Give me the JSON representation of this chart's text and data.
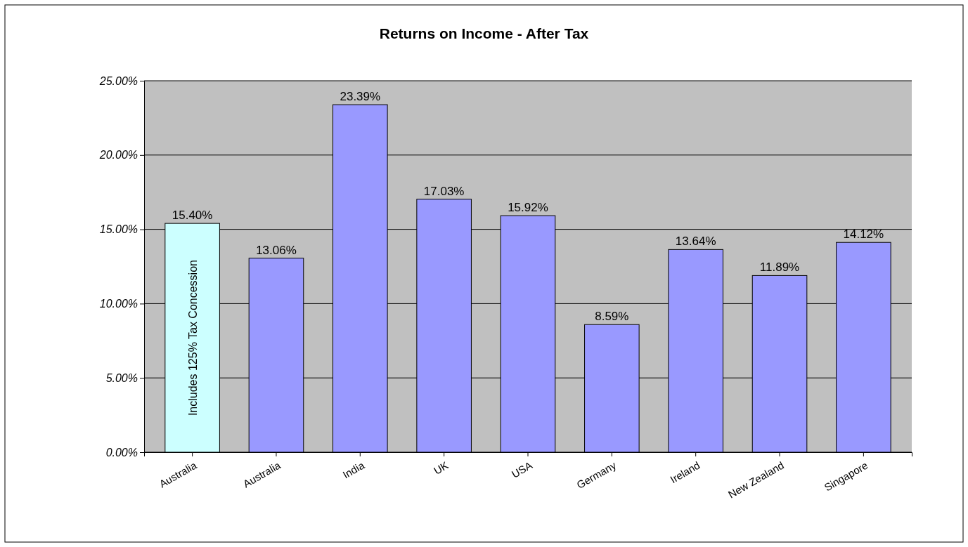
{
  "chart_data": {
    "type": "bar",
    "title": "Returns on Income - After Tax",
    "categories": [
      "Australia",
      "Australia",
      "India",
      "UK",
      "USA",
      "Germany",
      "Ireland",
      "New Zealand",
      "Singapore"
    ],
    "values": [
      15.4,
      13.06,
      23.39,
      17.03,
      15.92,
      8.59,
      13.64,
      11.89,
      14.12
    ],
    "value_labels": [
      "15.40%",
      "13.06%",
      "23.39%",
      "17.03%",
      "15.92%",
      "8.59%",
      "13.64%",
      "11.89%",
      "14.12%"
    ],
    "colors": [
      "#ccffff",
      "#9999ff",
      "#9999ff",
      "#9999ff",
      "#9999ff",
      "#9999ff",
      "#9999ff",
      "#9999ff",
      "#9999ff"
    ],
    "annotations": [
      "Includes 125% Tax Concession"
    ],
    "ylim": [
      0,
      25
    ],
    "yticks": [
      {
        "value": 0,
        "label": "0.00%"
      },
      {
        "value": 5,
        "label": "5.00%"
      },
      {
        "value": 10,
        "label": "10.00%"
      },
      {
        "value": 15,
        "label": "15.00%"
      },
      {
        "value": 20,
        "label": "20.00%"
      },
      {
        "value": 25,
        "label": "25.00%"
      }
    ],
    "grid": "y"
  }
}
